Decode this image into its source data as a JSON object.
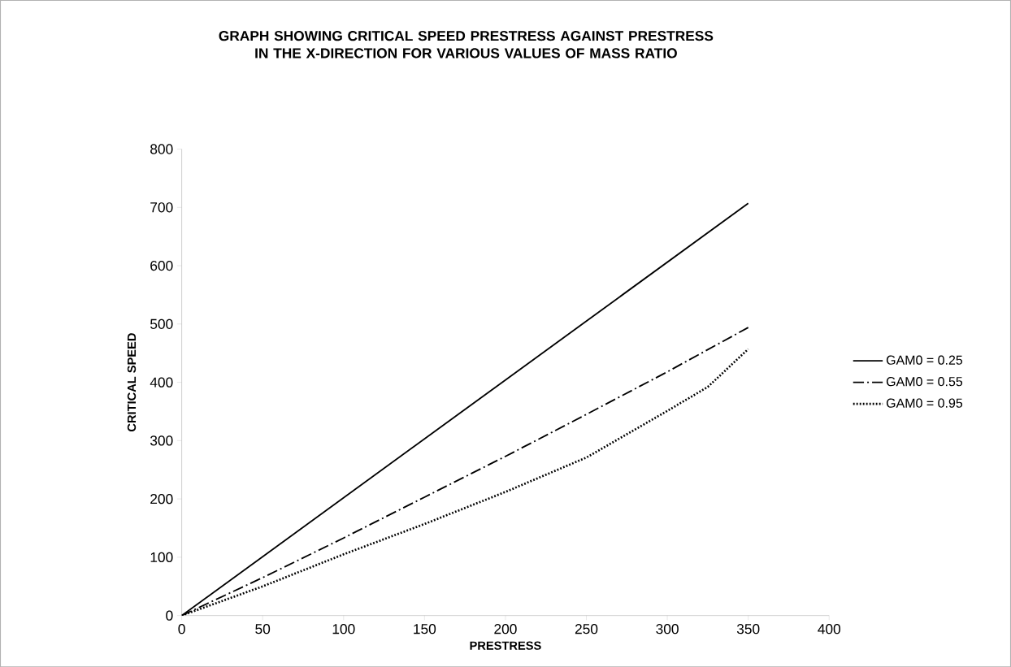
{
  "chart_data": {
    "type": "line",
    "title": "GRAPH SHOWING CRITICAL SPEED PRESTRESS AGAINST PRESTRESS IN THE X-DIRECTION FOR VARIOUS VALUES OF MASS RATIO",
    "xlabel": "PRESTRESS",
    "ylabel": "CRITICAL SPEED",
    "xlim": [
      0,
      400
    ],
    "xticks": [
      0,
      50,
      100,
      150,
      200,
      250,
      300,
      350,
      400
    ],
    "ylim": [
      0,
      800
    ],
    "yticks": [
      0,
      100,
      200,
      300,
      400,
      500,
      600,
      700,
      800
    ],
    "grid": false,
    "legend": "right",
    "x": [
      0,
      50,
      100,
      150,
      200,
      250,
      300,
      350
    ],
    "series": [
      {
        "name": "GAM0 = 0.25",
        "color": "#000000",
        "line_style": "solid",
        "values": [
          0,
          101,
          202,
          303,
          404,
          505,
          606,
          707
        ]
      },
      {
        "name": "GAM0 = 0.55",
        "color": "#000000",
        "line_style": "dashdot",
        "values": [
          0,
          65,
          133,
          203,
          273,
          345,
          418,
          494
        ]
      },
      {
        "name": "GAM0 = 0.95",
        "color": "#000000",
        "line_style": "dotted",
        "x": [
          0,
          50,
          100,
          150,
          200,
          250,
          300,
          325,
          350
        ],
        "values": [
          0,
          50,
          105,
          157,
          212,
          271,
          351,
          392,
          457
        ]
      }
    ]
  }
}
